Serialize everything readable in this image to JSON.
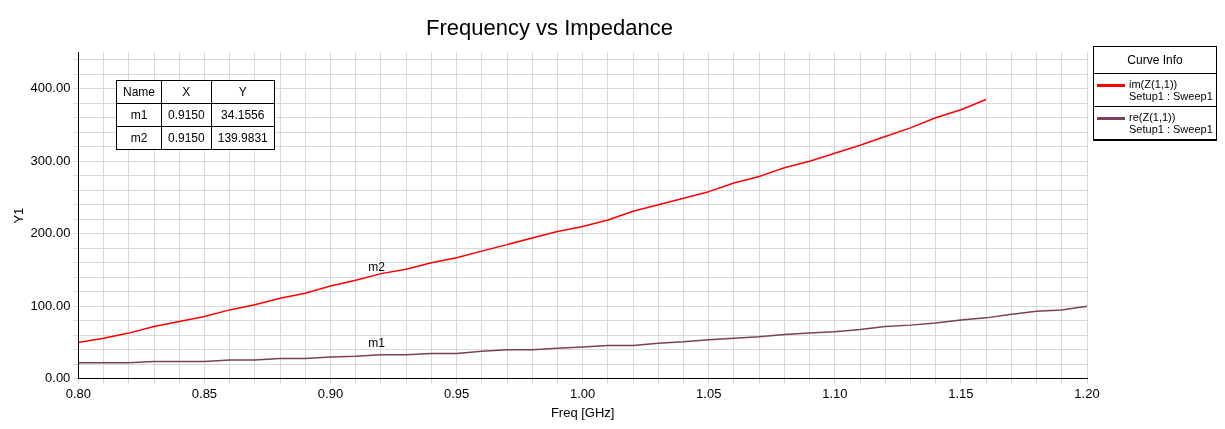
{
  "chart_data": {
    "type": "line",
    "title": "Frequency vs Impedance",
    "xlabel": "Freq [GHz]",
    "ylabel": "Y1",
    "legend_title": "Curve Info",
    "legend": "top right",
    "grid": true,
    "x": [
      0.8,
      0.81,
      0.82,
      0.83,
      0.84,
      0.85,
      0.86,
      0.87,
      0.88,
      0.89,
      0.9,
      0.91,
      0.92,
      0.93,
      0.94,
      0.95,
      0.96,
      0.97,
      0.98,
      0.99,
      1.0,
      1.01,
      1.02,
      1.03,
      1.04,
      1.05,
      1.06,
      1.07,
      1.08,
      1.09,
      1.1,
      1.11,
      1.12,
      1.13,
      1.14,
      1.15,
      1.16,
      1.17,
      1.18,
      1.19,
      1.2
    ],
    "series": [
      {
        "name": "im(Z(1,1))\nSetup1 : Sweep1",
        "color": "#ff0000",
        "values": [
          50,
          56,
          63,
          72,
          79,
          86,
          95,
          102,
          111,
          118,
          128,
          136,
          145,
          151,
          160,
          167,
          176,
          185,
          194,
          203,
          210,
          219,
          231,
          240,
          249,
          258,
          270,
          279,
          291,
          300,
          311,
          322,
          334,
          346,
          360,
          371,
          385,
          null,
          null,
          null,
          null
        ]
      },
      {
        "name": "re(Z(1,1))\nSetup1 : Sweep1",
        "color": "#7b3f5e",
        "values": [
          22,
          22,
          22,
          24,
          24,
          24,
          26,
          26,
          28,
          28,
          30,
          31,
          33,
          33,
          35,
          35,
          38,
          40,
          40,
          42,
          44,
          46,
          46,
          49,
          51,
          54,
          56,
          58,
          61,
          63,
          65,
          68,
          72,
          74,
          77,
          81,
          84,
          89,
          93,
          95,
          100
        ]
      }
    ],
    "xlim": [
      0.8,
      1.2
    ],
    "ylim": [
      0,
      450
    ],
    "xticks": [
      {
        "value": 0.8,
        "label": "0.80"
      },
      {
        "value": 0.81,
        "label": null
      },
      {
        "value": 0.82,
        "label": null
      },
      {
        "value": 0.83,
        "label": null
      },
      {
        "value": 0.84,
        "label": null
      },
      {
        "value": 0.85,
        "label": "0.85"
      },
      {
        "value": 0.86,
        "label": null
      },
      {
        "value": 0.87,
        "label": null
      },
      {
        "value": 0.88,
        "label": null
      },
      {
        "value": 0.89,
        "label": null
      },
      {
        "value": 0.9,
        "label": "0.90"
      },
      {
        "value": 0.91,
        "label": null
      },
      {
        "value": 0.92,
        "label": null
      },
      {
        "value": 0.93,
        "label": null
      },
      {
        "value": 0.94,
        "label": null
      },
      {
        "value": 0.95,
        "label": "0.95"
      },
      {
        "value": 0.96,
        "label": null
      },
      {
        "value": 0.97,
        "label": null
      },
      {
        "value": 0.98,
        "label": null
      },
      {
        "value": 0.99,
        "label": null
      },
      {
        "value": 1.0,
        "label": "1.00"
      },
      {
        "value": 1.01,
        "label": null
      },
      {
        "value": 1.02,
        "label": null
      },
      {
        "value": 1.03,
        "label": null
      },
      {
        "value": 1.04,
        "label": null
      },
      {
        "value": 1.05,
        "label": "1.05"
      },
      {
        "value": 1.06,
        "label": null
      },
      {
        "value": 1.07,
        "label": null
      },
      {
        "value": 1.08,
        "label": null
      },
      {
        "value": 1.09,
        "label": null
      },
      {
        "value": 1.1,
        "label": "1.10"
      },
      {
        "value": 1.11,
        "label": null
      },
      {
        "value": 1.12,
        "label": null
      },
      {
        "value": 1.13,
        "label": null
      },
      {
        "value": 1.14,
        "label": null
      },
      {
        "value": 1.15,
        "label": "1.15"
      },
      {
        "value": 1.16,
        "label": null
      },
      {
        "value": 1.17,
        "label": null
      },
      {
        "value": 1.18,
        "label": null
      },
      {
        "value": 1.19,
        "label": null
      },
      {
        "value": 1.2,
        "label": "1.20"
      }
    ],
    "yticks": [
      {
        "value": 0,
        "label": "0.00"
      },
      {
        "value": 20,
        "label": null
      },
      {
        "value": 40,
        "label": null
      },
      {
        "value": 60,
        "label": null
      },
      {
        "value": 80,
        "label": null
      },
      {
        "value": 100,
        "label": "100.00"
      },
      {
        "value": 120,
        "label": null
      },
      {
        "value": 140,
        "label": null
      },
      {
        "value": 160,
        "label": null
      },
      {
        "value": 180,
        "label": null
      },
      {
        "value": 200,
        "label": "200.00"
      },
      {
        "value": 220,
        "label": null
      },
      {
        "value": 240,
        "label": null
      },
      {
        "value": 260,
        "label": null
      },
      {
        "value": 280,
        "label": null
      },
      {
        "value": 300,
        "label": "300.00"
      },
      {
        "value": 320,
        "label": null
      },
      {
        "value": 340,
        "label": null
      },
      {
        "value": 360,
        "label": null
      },
      {
        "value": 380,
        "label": null
      },
      {
        "value": 400,
        "label": "400.00"
      },
      {
        "value": 420,
        "label": null
      },
      {
        "value": 440,
        "label": null
      }
    ],
    "annotations": [
      "Name",
      "X",
      "Y",
      "m1",
      "0.9150",
      "34.1556",
      "m2",
      "0.9150",
      "139.9831",
      {
        "text": "m1",
        "x": 0.915,
        "y": 34.1556
      },
      {
        "text": "m2",
        "x": 0.915,
        "y": 139.9831
      }
    ]
  }
}
